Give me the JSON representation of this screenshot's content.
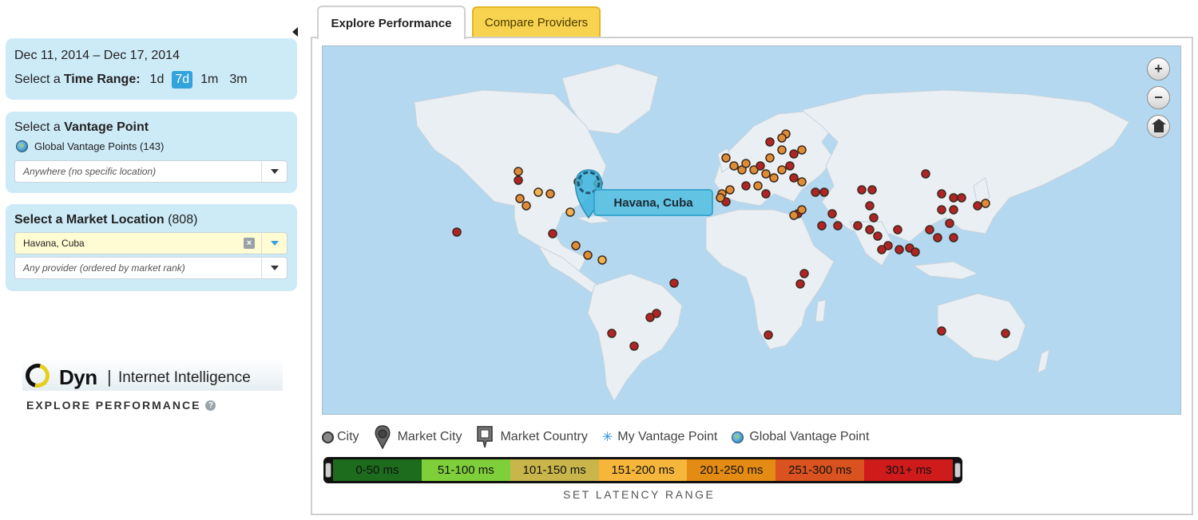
{
  "time": {
    "date_range": "Dec 11, 2014 – Dec 17, 2014",
    "label_prefix": "Select a",
    "label_bold": "Time Range:",
    "options": [
      "1d",
      "7d",
      "1m",
      "3m"
    ],
    "selected": "7d"
  },
  "vantage": {
    "title_prefix": "Select a",
    "title_bold": "Vantage Point",
    "global_label": "Global Vantage Points (143)",
    "select_placeholder": "Anywhere (no specific location)"
  },
  "market": {
    "title_bold": "Select a Market Location",
    "title_count": "(808)",
    "location_value": "Havana, Cuba",
    "provider_placeholder": "Any provider (ordered by market rank)"
  },
  "brand": {
    "name": "Dyn",
    "separator": "|",
    "subtitle": "Internet Intelligence",
    "section_label": "EXPLORE PERFORMANCE"
  },
  "tabs": {
    "explore": "Explore Performance",
    "compare": "Compare Providers"
  },
  "map": {
    "tooltip": "Havana, Cuba",
    "colors": {
      "ocean": "#b4d8ef",
      "land": "#e9eff3",
      "orange": "#e08c34",
      "light_orange": "#f3b34b",
      "red": "#b22424",
      "marker": "#3ab3dc"
    }
  },
  "legend": {
    "city": "City",
    "market_city": "Market City",
    "market_country": "Market Country",
    "my_vantage": "My Vantage Point",
    "global_vantage": "Global Vantage Point"
  },
  "latency": {
    "segments": [
      {
        "label": "0-50 ms",
        "color": "#1d6b1d"
      },
      {
        "label": "51-100 ms",
        "color": "#7fcf3a"
      },
      {
        "label": "101-150 ms",
        "color": "#c8b64a"
      },
      {
        "label": "151-200 ms",
        "color": "#f5b63b"
      },
      {
        "label": "201-250 ms",
        "color": "#e38b12"
      },
      {
        "label": "251-300 ms",
        "color": "#d9521f"
      },
      {
        "label": "301+ ms",
        "color": "#cf1b1b"
      }
    ],
    "set_label": "SET LATENCY RANGE"
  }
}
